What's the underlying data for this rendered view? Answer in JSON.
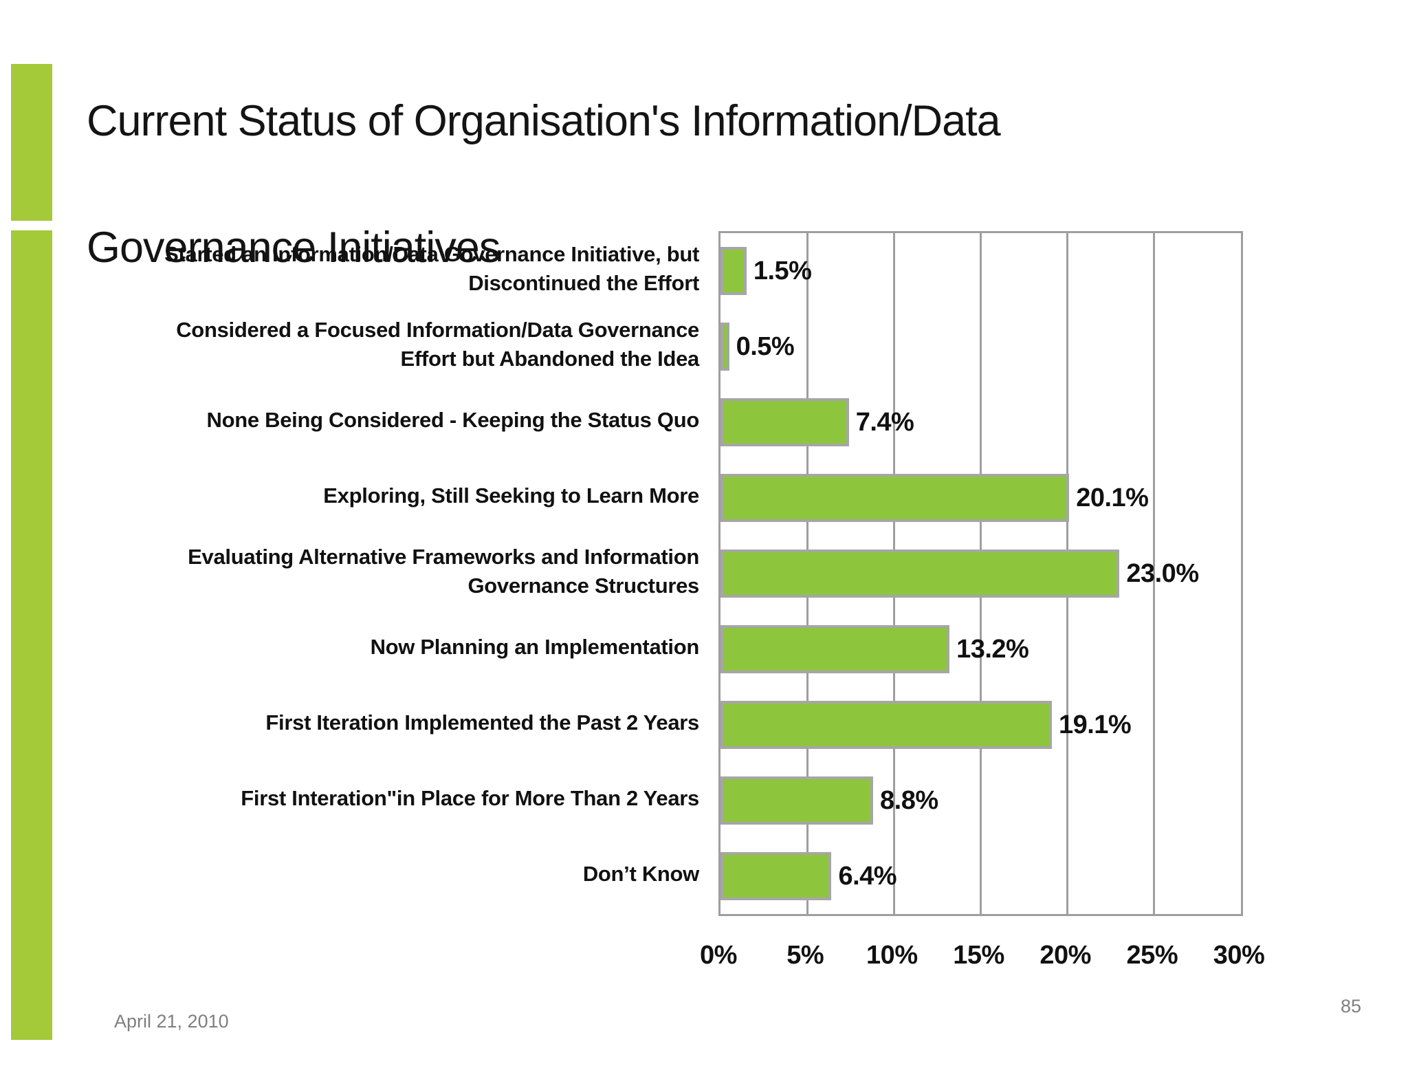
{
  "slide": {
    "title_lines": [
      "Current Status of Organisation's Information/Data",
      "Governance Initiatives"
    ],
    "footer_date": "April 21, 2010",
    "page_number": "85",
    "accent_color": "#a4c939",
    "background_color": "#ffffff"
  },
  "chart_data": {
    "type": "bar",
    "orientation": "horizontal",
    "title": "Current Status of Organisation's Information/Data Governance Initiatives",
    "categories": [
      "Started an Information/Data Governance Initiative, but\nDiscontinued the Effort",
      "Considered a Focused Information/Data Governance\nEffort but Abandoned the Idea",
      "None Being Considered - Keeping the Status Quo",
      "Exploring, Still Seeking to Learn More",
      "Evaluating Alternative Frameworks and Information\nGovernance Structures",
      "Now Planning an Implementation",
      "First Iteration Implemented the Past 2 Years",
      "First Interation\"in Place for More Than 2 Years",
      "Don’t Know"
    ],
    "values": [
      1.5,
      0.5,
      7.4,
      20.1,
      23.0,
      13.2,
      19.1,
      8.8,
      6.4
    ],
    "value_labels": [
      "1.5%",
      "0.5%",
      "7.4%",
      "20.1%",
      "23.0%",
      "13.2%",
      "19.1%",
      "8.8%",
      "6.4%"
    ],
    "xlabel": "",
    "ylabel": "",
    "xlim": [
      0,
      30
    ],
    "xtick_values": [
      0,
      5,
      10,
      15,
      20,
      25,
      30
    ],
    "xtick_labels": [
      "0%",
      "5%",
      "10%",
      "15%",
      "20%",
      "25%",
      "30%"
    ],
    "grid": "vertical",
    "legend": "none",
    "bar_color": "#8dc63c",
    "bar_border_color": "#a6a6a6",
    "gridline_color": "#9e9e9e"
  }
}
